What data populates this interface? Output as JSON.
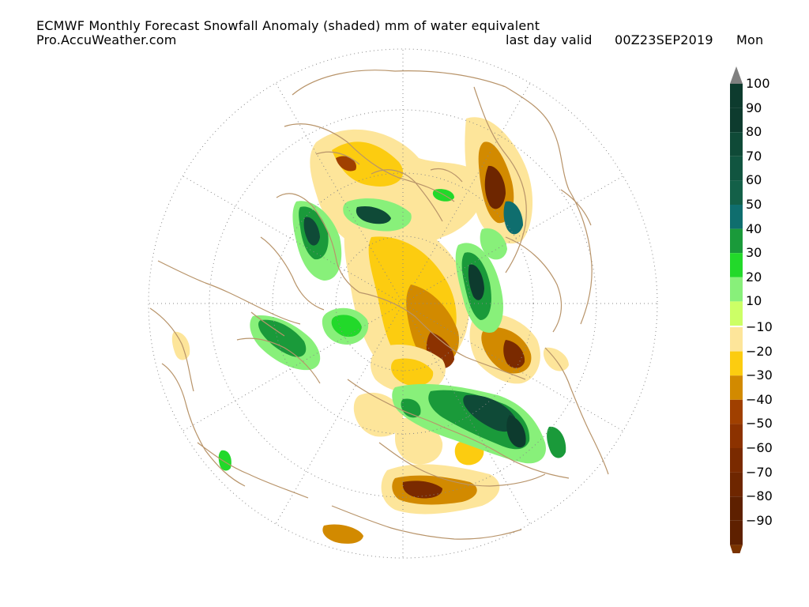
{
  "header": {
    "title": "ECMWF Monthly Forecast Snowfall Anomaly (shaded) mm of water equivalent",
    "source": "Pro.AccuWeather.com",
    "valid_label": "last day valid",
    "valid_time": "00Z23SEP2019",
    "valid_day": "Mon"
  },
  "colorbar": {
    "positive": [
      {
        "label": "100",
        "color": "#0d3b2e"
      },
      {
        "label": "90",
        "color": "#0d3b2e"
      },
      {
        "label": "80",
        "color": "#0f4a37"
      },
      {
        "label": "70",
        "color": "#115540"
      },
      {
        "label": "60",
        "color": "#136048"
      },
      {
        "label": "50",
        "color": "#0f6e6e"
      },
      {
        "label": "40",
        "color": "#1a9a3a"
      },
      {
        "label": "30",
        "color": "#22d92a"
      },
      {
        "label": "20",
        "color": "#88f07a"
      },
      {
        "label": "10",
        "color": "#ccff66"
      }
    ],
    "negative": [
      {
        "label": "−10",
        "color": "#fde59a"
      },
      {
        "label": "−20",
        "color": "#fccc10"
      },
      {
        "label": "−30",
        "color": "#d28a00"
      },
      {
        "label": "−40",
        "color": "#a04000"
      },
      {
        "label": "−50",
        "color": "#8c3200"
      },
      {
        "label": "−60",
        "color": "#7a2a00"
      },
      {
        "label": "−70",
        "color": "#6e2600"
      },
      {
        "label": "−80",
        "color": "#5e2000"
      },
      {
        "label": "−90",
        "color": "#5e2000"
      }
    ],
    "over_color": "#808080",
    "under_color": "#7a3300"
  },
  "map": {
    "projection": "polar-stereographic (north polar)",
    "coastline_color": "#b8946a",
    "grid": "dotted",
    "overlay_color_neutral": "#ffffff"
  }
}
